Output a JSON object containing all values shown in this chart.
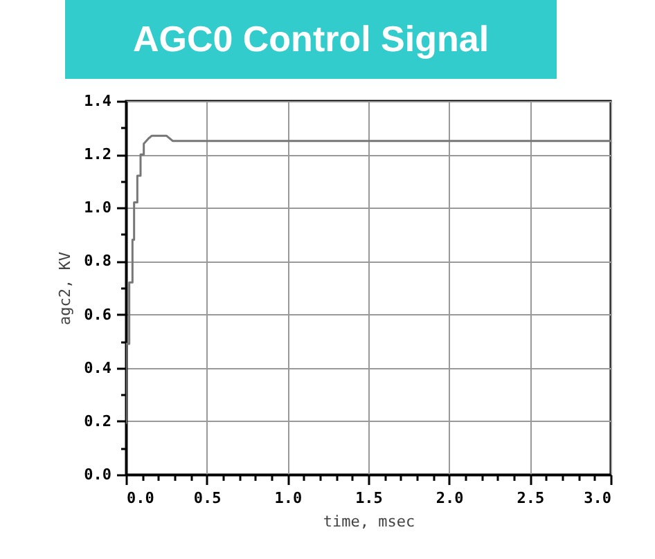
{
  "chart_data": {
    "type": "line",
    "title": "AGC0 Control Signal",
    "xlabel": "time, msec",
    "ylabel": "agc2, KV",
    "x": [
      0,
      0,
      0.02,
      0.02,
      0.04,
      0.04,
      0.05,
      0.05,
      0.07,
      0.07,
      0.09,
      0.09,
      0.11,
      0.11,
      0.14,
      0.16,
      0.25,
      0.29,
      1.0,
      2.0,
      3.0
    ],
    "series": [
      {
        "color": "#777777",
        "values": [
          0.19,
          0.49,
          0.49,
          0.72,
          0.72,
          0.88,
          0.88,
          1.02,
          1.02,
          1.12,
          1.12,
          1.2,
          1.2,
          1.24,
          1.26,
          1.27,
          1.27,
          1.25,
          1.25,
          1.25,
          1.25
        ]
      }
    ],
    "xlim": [
      0,
      3
    ],
    "ylim": [
      0,
      1.4
    ],
    "xticks": [
      {
        "value": 0,
        "label": "0.0"
      },
      {
        "value": 0.1,
        "label": null
      },
      {
        "value": 0.2,
        "label": null
      },
      {
        "value": 0.3,
        "label": null
      },
      {
        "value": 0.4,
        "label": null
      },
      {
        "value": 0.5,
        "label": "0.5"
      },
      {
        "value": 0.6,
        "label": null
      },
      {
        "value": 0.7,
        "label": null
      },
      {
        "value": 0.8,
        "label": null
      },
      {
        "value": 0.9,
        "label": null
      },
      {
        "value": 1,
        "label": "1.0"
      },
      {
        "value": 1.1,
        "label": null
      },
      {
        "value": 1.2,
        "label": null
      },
      {
        "value": 1.3,
        "label": null
      },
      {
        "value": 1.4,
        "label": null
      },
      {
        "value": 1.5,
        "label": "1.5"
      },
      {
        "value": 1.6,
        "label": null
      },
      {
        "value": 1.7,
        "label": null
      },
      {
        "value": 1.8,
        "label": null
      },
      {
        "value": 1.9,
        "label": null
      },
      {
        "value": 2,
        "label": "2.0"
      },
      {
        "value": 2.1,
        "label": null
      },
      {
        "value": 2.2,
        "label": null
      },
      {
        "value": 2.3,
        "label": null
      },
      {
        "value": 2.4,
        "label": null
      },
      {
        "value": 2.5,
        "label": "2.5"
      },
      {
        "value": 2.6,
        "label": null
      },
      {
        "value": 2.7,
        "label": null
      },
      {
        "value": 2.8,
        "label": null
      },
      {
        "value": 2.9,
        "label": null
      },
      {
        "value": 3,
        "label": "3.0"
      }
    ],
    "yticks": [
      {
        "value": 0,
        "label": "0.0"
      },
      {
        "value": 0.1,
        "label": null
      },
      {
        "value": 0.2,
        "label": "0.2"
      },
      {
        "value": 0.3,
        "label": null
      },
      {
        "value": 0.4,
        "label": "0.4"
      },
      {
        "value": 0.5,
        "label": null
      },
      {
        "value": 0.6,
        "label": "0.6"
      },
      {
        "value": 0.7,
        "label": null
      },
      {
        "value": 0.8,
        "label": "0.8"
      },
      {
        "value": 0.9,
        "label": null
      },
      {
        "value": 1,
        "label": "1.0"
      },
      {
        "value": 1.1,
        "label": null
      },
      {
        "value": 1.2,
        "label": "1.2"
      },
      {
        "value": 1.3,
        "label": null
      },
      {
        "value": 1.4,
        "label": "1.4"
      }
    ],
    "grid": true,
    "marker": "none",
    "line_style": "solid"
  }
}
